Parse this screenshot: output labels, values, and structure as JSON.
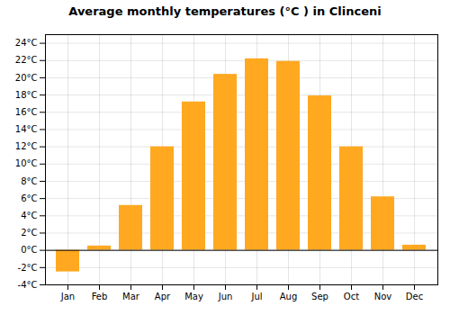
{
  "chart_data": {
    "type": "bar",
    "title": "Average monthly temperatures (°C ) in Clinceni",
    "categories": [
      "Jan",
      "Feb",
      "Mar",
      "Apr",
      "May",
      "Jun",
      "Jul",
      "Aug",
      "Sep",
      "Oct",
      "Nov",
      "Dec"
    ],
    "values": [
      -2.5,
      0.5,
      5.2,
      12.0,
      17.2,
      20.4,
      22.2,
      21.9,
      17.9,
      12.0,
      6.2,
      0.6
    ],
    "color": "#FFA820",
    "ylim": [
      -4,
      25
    ],
    "yticks": [
      {
        "value": -4,
        "label": "-4°C"
      },
      {
        "value": -2,
        "label": "-2°C"
      },
      {
        "value": 0,
        "label": "0°C"
      },
      {
        "value": 2,
        "label": "2°C"
      },
      {
        "value": 4,
        "label": "4°C"
      },
      {
        "value": 6,
        "label": "6°C"
      },
      {
        "value": 8,
        "label": "8°C"
      },
      {
        "value": 10,
        "label": "10°C"
      },
      {
        "value": 12,
        "label": "12°C"
      },
      {
        "value": 14,
        "label": "14°C"
      },
      {
        "value": 16,
        "label": "16°C"
      },
      {
        "value": 18,
        "label": "18°C"
      },
      {
        "value": 20,
        "label": "20°C"
      },
      {
        "value": 22,
        "label": "22°C"
      },
      {
        "value": 24,
        "label": "24°C"
      }
    ],
    "grid": true
  }
}
